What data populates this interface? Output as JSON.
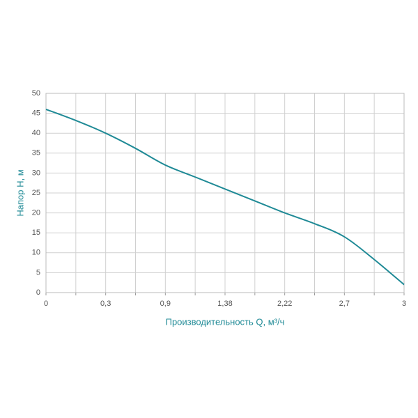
{
  "chart_data": {
    "type": "line",
    "x_label": "Производительность Q, м³/ч",
    "y_label": "Напор H, м",
    "categories": [
      "0",
      null,
      "0,3",
      null,
      "0,9",
      null,
      "1,38",
      null,
      "2,22",
      null,
      "2,7",
      null,
      "3"
    ],
    "series": [
      {
        "name": "H",
        "color": "#1f8a96",
        "values": [
          46,
          43.2,
          40,
          36.2,
          32,
          29,
          26,
          23,
          20,
          17.3,
          14,
          8.3,
          2
        ]
      }
    ],
    "ylim": [
      0,
      50
    ],
    "yticks": [
      0,
      5,
      10,
      15,
      20,
      25,
      30,
      35,
      40,
      45,
      50
    ],
    "grid": true
  }
}
